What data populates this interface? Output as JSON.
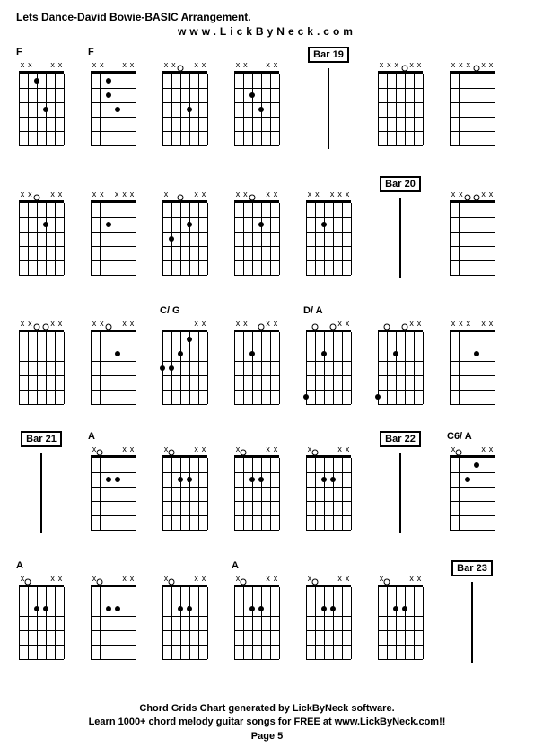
{
  "title": "Lets Dance-David Bowie-BASIC Arrangement.",
  "subtitle": "www.LickByNeck.com",
  "footer_line1": "Chord Grids Chart generated by LickByNeck software.",
  "footer_line2": "Learn 1000+ chord melody guitar songs for FREE at www.LickByNeck.com!!",
  "footer_page": "Page 5",
  "colors": {
    "background": "#ffffff",
    "text": "#000000",
    "line": "#000000"
  },
  "grid_layout": {
    "rows": 5,
    "cols": 7,
    "fret_count": 5,
    "string_count": 6
  },
  "rows": [
    [
      {
        "type": "chord",
        "label": "F",
        "mutes": [
          "x",
          "x",
          "",
          "",
          "x",
          "x"
        ],
        "opens": [],
        "dots": [
          [
            3,
            1
          ],
          [
            4,
            3
          ]
        ]
      },
      {
        "type": "chord",
        "label": "F",
        "mutes": [
          "x",
          "x",
          "",
          "",
          "x",
          "x"
        ],
        "opens": [],
        "dots": [
          [
            3,
            1
          ],
          [
            4,
            3
          ],
          [
            3,
            2
          ]
        ]
      },
      {
        "type": "chord",
        "label": "",
        "mutes": [
          "x",
          "x",
          "",
          "",
          "x",
          "x"
        ],
        "opens": [
          3
        ],
        "dots": [
          [
            4,
            3
          ]
        ]
      },
      {
        "type": "chord",
        "label": "",
        "mutes": [
          "x",
          "x",
          "",
          "",
          "x",
          "x"
        ],
        "opens": [],
        "dots": [
          [
            3,
            2
          ],
          [
            4,
            3
          ]
        ]
      },
      {
        "type": "bar",
        "label": "Bar 19"
      },
      {
        "type": "chord",
        "label": "",
        "mutes": [
          "x",
          "x",
          "x",
          "",
          "x",
          "x"
        ],
        "opens": [
          4
        ],
        "dots": []
      },
      {
        "type": "chord",
        "label": "",
        "mutes": [
          "x",
          "x",
          "x",
          "",
          "x",
          "x"
        ],
        "opens": [
          4
        ],
        "dots": []
      }
    ],
    [
      {
        "type": "chord",
        "label": "",
        "mutes": [
          "x",
          "x",
          "",
          "",
          "x",
          "x"
        ],
        "opens": [
          3
        ],
        "dots": [
          [
            4,
            2
          ]
        ]
      },
      {
        "type": "chord",
        "label": "",
        "mutes": [
          "x",
          "x",
          "",
          "x",
          "x",
          "x"
        ],
        "opens": [],
        "dots": [
          [
            3,
            2
          ]
        ]
      },
      {
        "type": "chord",
        "label": "",
        "mutes": [
          "x",
          "",
          "",
          "",
          "x",
          "x"
        ],
        "opens": [
          3
        ],
        "dots": [
          [
            2,
            3
          ],
          [
            4,
            2
          ]
        ]
      },
      {
        "type": "chord",
        "label": "",
        "mutes": [
          "x",
          "x",
          "",
          "",
          "x",
          "x"
        ],
        "opens": [
          3
        ],
        "dots": [
          [
            4,
            2
          ]
        ]
      },
      {
        "type": "chord",
        "label": "",
        "mutes": [
          "x",
          "x",
          "",
          "x",
          "x",
          "x"
        ],
        "opens": [],
        "dots": [
          [
            3,
            2
          ]
        ]
      },
      {
        "type": "bar",
        "label": "Bar 20"
      },
      {
        "type": "chord",
        "label": "",
        "mutes": [
          "x",
          "x",
          "",
          "",
          "x",
          "x"
        ],
        "opens": [
          3,
          4
        ],
        "dots": []
      }
    ],
    [
      {
        "type": "chord",
        "label": "",
        "mutes": [
          "x",
          "x",
          "",
          "",
          "x",
          "x"
        ],
        "opens": [
          3,
          4
        ],
        "dots": []
      },
      {
        "type": "chord",
        "label": "",
        "mutes": [
          "x",
          "x",
          "",
          "",
          "x",
          "x"
        ],
        "opens": [
          3
        ],
        "dots": [
          [
            4,
            2
          ]
        ]
      },
      {
        "type": "chord",
        "label": "C/ G",
        "mutes": [
          "",
          "",
          "",
          "",
          "x",
          "x"
        ],
        "opens": [],
        "dots": [
          [
            1,
            3
          ],
          [
            2,
            3
          ],
          [
            3,
            2
          ],
          [
            4,
            1
          ]
        ]
      },
      {
        "type": "chord",
        "label": "",
        "mutes": [
          "x",
          "x",
          "",
          "",
          "x",
          "x"
        ],
        "opens": [
          4
        ],
        "dots": [
          [
            3,
            2
          ]
        ]
      },
      {
        "type": "chord",
        "label": "D/ A",
        "mutes": [
          "",
          "",
          "",
          "",
          "x",
          "x"
        ],
        "opens": [
          2,
          4
        ],
        "dots": [
          [
            1,
            5
          ],
          [
            3,
            2
          ]
        ]
      },
      {
        "type": "chord",
        "label": "",
        "mutes": [
          "",
          "",
          "",
          "",
          "x",
          "x"
        ],
        "opens": [
          2,
          4
        ],
        "dots": [
          [
            1,
            5
          ],
          [
            3,
            2
          ]
        ]
      },
      {
        "type": "chord",
        "label": "",
        "mutes": [
          "x",
          "x",
          "x",
          "",
          "x",
          "x"
        ],
        "opens": [],
        "dots": [
          [
            4,
            2
          ]
        ]
      }
    ],
    [
      {
        "type": "bar",
        "label": "Bar 21"
      },
      {
        "type": "chord",
        "label": "A",
        "mutes": [
          "x",
          "",
          "",
          "",
          "x",
          "x"
        ],
        "opens": [
          2
        ],
        "dots": [
          [
            3,
            2
          ],
          [
            4,
            2
          ]
        ]
      },
      {
        "type": "chord",
        "label": "",
        "mutes": [
          "x",
          "",
          "",
          "",
          "x",
          "x"
        ],
        "opens": [
          2
        ],
        "dots": [
          [
            3,
            2
          ],
          [
            4,
            2
          ]
        ]
      },
      {
        "type": "chord",
        "label": "",
        "mutes": [
          "x",
          "",
          "",
          "",
          "x",
          "x"
        ],
        "opens": [
          2
        ],
        "dots": [
          [
            3,
            2
          ],
          [
            4,
            2
          ]
        ]
      },
      {
        "type": "chord",
        "label": "",
        "mutes": [
          "x",
          "",
          "",
          "",
          "x",
          "x"
        ],
        "opens": [
          2
        ],
        "dots": [
          [
            3,
            2
          ],
          [
            4,
            2
          ]
        ]
      },
      {
        "type": "bar",
        "label": "Bar 22"
      },
      {
        "type": "chord",
        "label": "C6/ A",
        "mutes": [
          "x",
          "",
          "",
          "",
          "x",
          "x"
        ],
        "opens": [
          2
        ],
        "dots": [
          [
            3,
            2
          ],
          [
            4,
            1
          ]
        ]
      }
    ],
    [
      {
        "type": "chord",
        "label": "A",
        "mutes": [
          "x",
          "",
          "",
          "",
          "x",
          "x"
        ],
        "opens": [
          2
        ],
        "dots": [
          [
            3,
            2
          ],
          [
            4,
            2
          ]
        ]
      },
      {
        "type": "chord",
        "label": "",
        "mutes": [
          "x",
          "",
          "",
          "",
          "x",
          "x"
        ],
        "opens": [
          2
        ],
        "dots": [
          [
            3,
            2
          ],
          [
            4,
            2
          ]
        ]
      },
      {
        "type": "chord",
        "label": "",
        "mutes": [
          "x",
          "",
          "",
          "",
          "x",
          "x"
        ],
        "opens": [
          2
        ],
        "dots": [
          [
            3,
            2
          ],
          [
            4,
            2
          ]
        ]
      },
      {
        "type": "chord",
        "label": "A",
        "mutes": [
          "x",
          "",
          "",
          "",
          "x",
          "x"
        ],
        "opens": [
          2
        ],
        "dots": [
          [
            3,
            2
          ],
          [
            4,
            2
          ]
        ]
      },
      {
        "type": "chord",
        "label": "",
        "mutes": [
          "x",
          "",
          "",
          "",
          "x",
          "x"
        ],
        "opens": [
          2
        ],
        "dots": [
          [
            3,
            2
          ],
          [
            4,
            2
          ]
        ]
      },
      {
        "type": "chord",
        "label": "",
        "mutes": [
          "x",
          "",
          "",
          "",
          "x",
          "x"
        ],
        "opens": [
          2
        ],
        "dots": [
          [
            3,
            2
          ],
          [
            4,
            2
          ]
        ]
      },
      {
        "type": "bar",
        "label": "Bar 23"
      }
    ]
  ]
}
